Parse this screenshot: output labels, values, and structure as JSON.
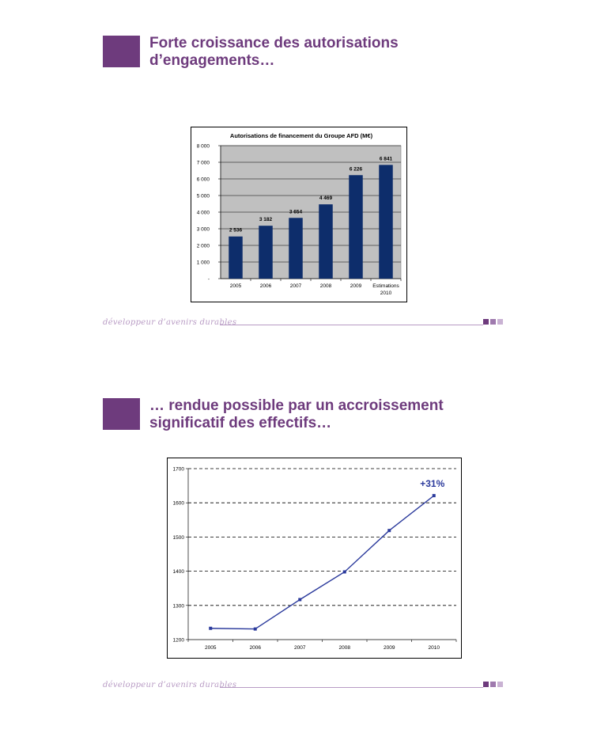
{
  "slides": [
    {
      "title_line1": "Forte croissance des autorisations",
      "title_line2": "d’engagements…",
      "footer": "développeur d’avenirs durables"
    },
    {
      "title_line1": "… rendue possible par un accroissement",
      "title_line2": "significatif des effectifs…",
      "footer": "développeur d’avenirs durables"
    }
  ],
  "colors": {
    "accent": "#6e3b7d",
    "footer": "#b89bc4",
    "bar": "#0d2d6b",
    "line": "#2b3a9c",
    "plot_bg": "#c0c0c0"
  },
  "chart_data": [
    {
      "type": "bar",
      "title": "Autorisations de financement du Groupe AFD (M€)",
      "categories": [
        "2005",
        "2006",
        "2007",
        "2008",
        "2009",
        "Estimations 2010"
      ],
      "category_lines": [
        [
          "2005"
        ],
        [
          "2006"
        ],
        [
          "2007"
        ],
        [
          "2008"
        ],
        [
          "2009"
        ],
        [
          "Estimations",
          "2010"
        ]
      ],
      "values": [
        2536,
        3182,
        3654,
        4469,
        6226,
        6841
      ],
      "value_labels": [
        "2 536",
        "3 182",
        "3 654",
        "4 469",
        "6 226",
        "6 841"
      ],
      "ylim": [
        0,
        8000
      ],
      "yticks": [
        0,
        1000,
        2000,
        3000,
        4000,
        5000,
        6000,
        7000,
        8000
      ],
      "ytick_labels": [
        "-",
        "1 000",
        "2 000",
        "3 000",
        "4 000",
        "5 000",
        "6 000",
        "7 000",
        "8 000"
      ],
      "grid": true
    },
    {
      "type": "line",
      "title": "",
      "x": [
        "2005",
        "2006",
        "2007",
        "2008",
        "2009",
        "2010"
      ],
      "values": [
        1233,
        1231,
        1317,
        1398,
        1519,
        1621
      ],
      "ylim": [
        1200,
        1700
      ],
      "yticks": [
        1200,
        1300,
        1400,
        1500,
        1600,
        1700
      ],
      "annotation": "+31%",
      "grid": true
    }
  ]
}
